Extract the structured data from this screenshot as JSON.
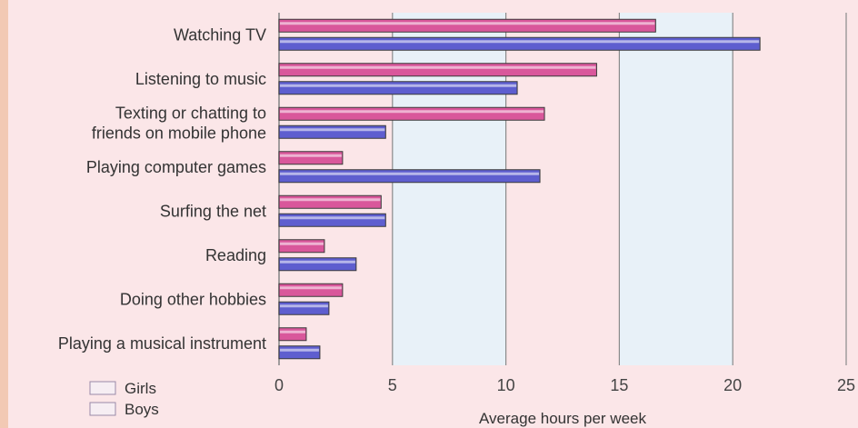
{
  "chart_data": {
    "type": "bar",
    "orientation": "horizontal",
    "categories": [
      "Watching TV",
      "Listening to music",
      "Texting or chatting to friends on mobile phone",
      "Playing computer games",
      "Surfing the net",
      "Reading",
      "Doing other hobbies",
      "Playing a musical instrument"
    ],
    "category_lines": [
      [
        "Watching TV"
      ],
      [
        "Listening to music"
      ],
      [
        "Texting or chatting to",
        "friends on mobile phone"
      ],
      [
        "Playing computer games"
      ],
      [
        "Surfing the net"
      ],
      [
        "Reading"
      ],
      [
        "Doing other hobbies"
      ],
      [
        "Playing a musical instrument"
      ]
    ],
    "series": [
      {
        "name": "Girls",
        "values": [
          16.6,
          14.0,
          11.7,
          2.8,
          4.5,
          2.0,
          2.8,
          1.2
        ],
        "color": "#d9579b"
      },
      {
        "name": "Boys",
        "values": [
          21.2,
          10.5,
          4.7,
          11.5,
          4.7,
          3.4,
          2.2,
          1.8
        ],
        "color": "#5e5ecf"
      }
    ],
    "x_ticks": [
      "0",
      "5",
      "10",
      "15",
      "20",
      "25"
    ],
    "xlim": [
      0,
      25
    ],
    "xlabel": "Average hours per week",
    "ylabel": "",
    "title": "",
    "legend_position": "bottom-left",
    "band_colors": [
      "#fbe6e8",
      "#e8f1f8"
    ]
  }
}
